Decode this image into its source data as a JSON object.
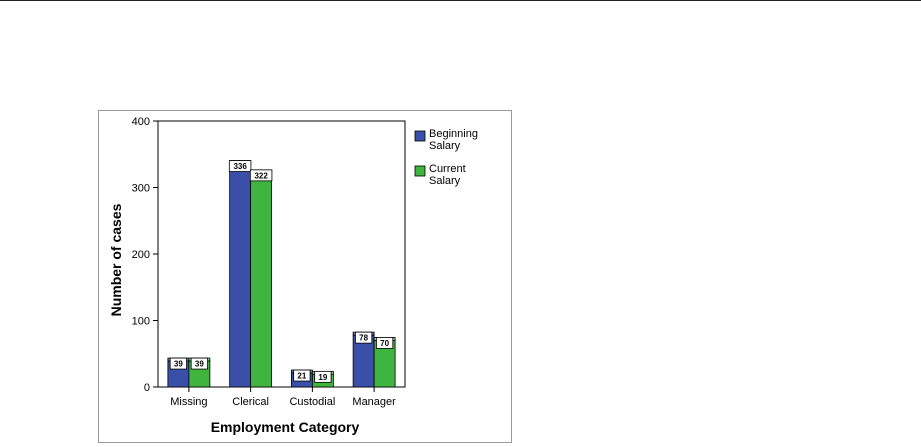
{
  "chart_data": {
    "type": "bar",
    "title": "",
    "xlabel": "Employment Category",
    "ylabel": "Number of cases",
    "categories": [
      "Missing",
      "Clerical",
      "Custodial",
      "Manager"
    ],
    "ylim": [
      0,
      400
    ],
    "yticks": [
      0,
      100,
      200,
      300,
      400
    ],
    "grid": false,
    "legend_position": "right",
    "series": [
      {
        "name_lines": [
          "Beginning",
          "Salary"
        ],
        "color": "#3a4fa8",
        "values": [
          39,
          336,
          21,
          78
        ]
      },
      {
        "name_lines": [
          "Current",
          "Salary"
        ],
        "color": "#3fb43f",
        "values": [
          39,
          322,
          19,
          70
        ]
      }
    ]
  }
}
